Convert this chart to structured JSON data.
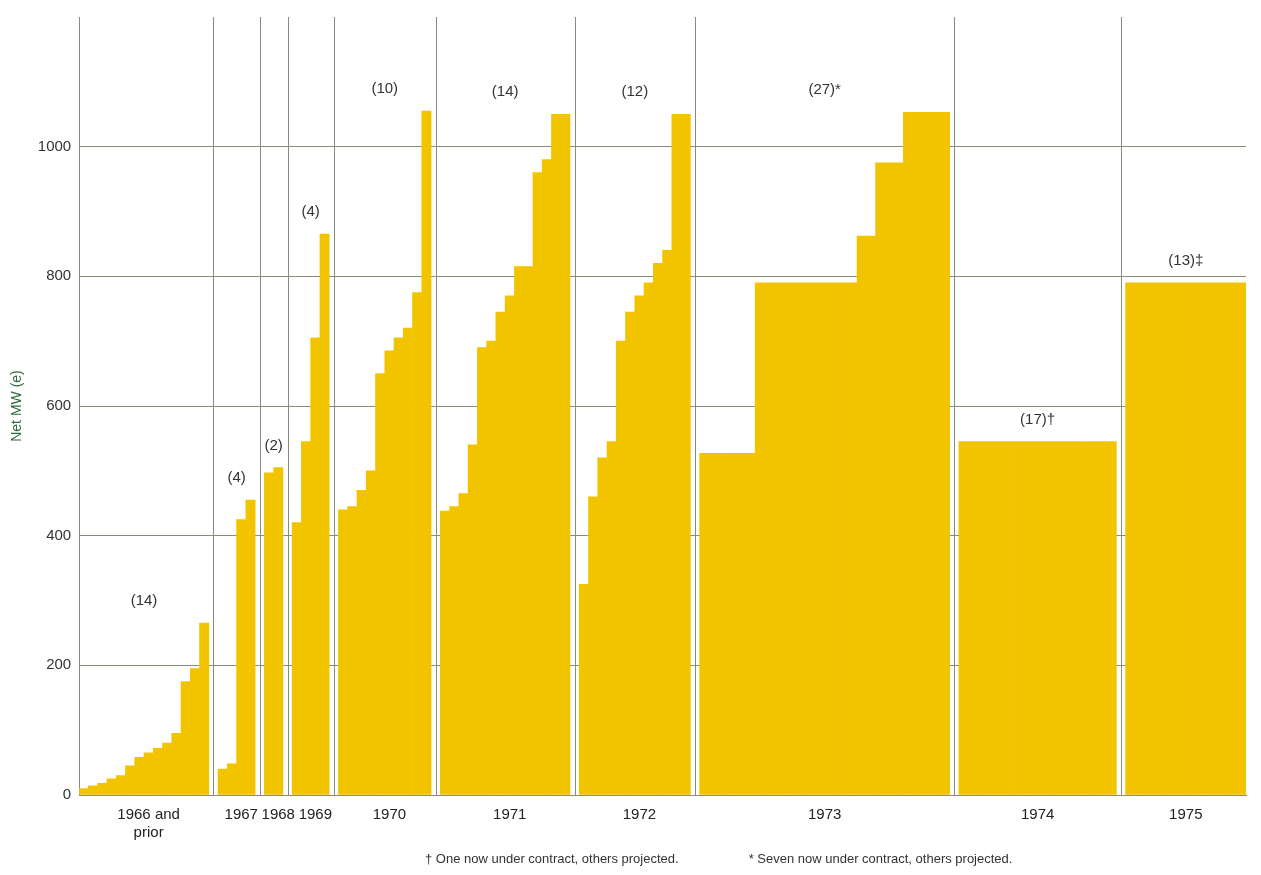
{
  "chart_data": {
    "type": "bar",
    "ylabel": "Net MW (e)",
    "categories": [
      null,
      null,
      null,
      null,
      null,
      null,
      null,
      "1966 and prior",
      null,
      null,
      null,
      null,
      null,
      null,
      null,
      null,
      null,
      "1967",
      null,
      null,
      null,
      "1968",
      null,
      null,
      null,
      "1969",
      null,
      null,
      null,
      null,
      null,
      null,
      null,
      "1970",
      null,
      null,
      null,
      null,
      null,
      null,
      null,
      null,
      null,
      null,
      null,
      null,
      "1971",
      null,
      null,
      null,
      null,
      null,
      null,
      null,
      null,
      null,
      null,
      null,
      null,
      null,
      "1972",
      null,
      null,
      null,
      null,
      null,
      null,
      null,
      null,
      null,
      null,
      null,
      null,
      null,
      null,
      null,
      null,
      null,
      null,
      null,
      "1973",
      null,
      null,
      null,
      null,
      null,
      null,
      null,
      null,
      null,
      null,
      null,
      null,
      null,
      null,
      null,
      null,
      null,
      null,
      null,
      null,
      null,
      null,
      "1974",
      null,
      null,
      null,
      null,
      null,
      null,
      null,
      null,
      null,
      null,
      null,
      null,
      null,
      null,
      null,
      "1975",
      null,
      null,
      null,
      null,
      null,
      null
    ],
    "values": [
      10,
      14,
      18,
      25,
      30,
      45,
      58,
      65,
      72,
      80,
      95,
      175,
      195,
      265,
      null,
      40,
      48,
      425,
      455,
      null,
      497,
      505,
      null,
      420,
      545,
      705,
      865,
      null,
      440,
      445,
      470,
      500,
      650,
      685,
      705,
      720,
      775,
      1055,
      null,
      438,
      445,
      465,
      540,
      690,
      700,
      745,
      770,
      815,
      815,
      960,
      980,
      1050,
      1050,
      null,
      325,
      460,
      520,
      545,
      700,
      745,
      770,
      790,
      820,
      840,
      1050,
      1050,
      null,
      527,
      527,
      527,
      527,
      527,
      527,
      790,
      790,
      790,
      790,
      790,
      790,
      790,
      790,
      790,
      790,
      790,
      862,
      862,
      975,
      975,
      975,
      1053,
      1053,
      1053,
      1053,
      1053,
      null,
      545,
      545,
      545,
      545,
      545,
      545,
      545,
      545,
      545,
      545,
      545,
      545,
      545,
      545,
      545,
      545,
      545,
      null,
      790,
      790,
      790,
      790,
      790,
      790,
      790,
      790,
      790,
      790,
      790,
      790,
      790
    ],
    "color": "#f2c400",
    "ylim": [
      0,
      1200
    ],
    "yticks": [
      0,
      200,
      400,
      600,
      800,
      1000
    ],
    "grid": true,
    "legend": false,
    "annotations": [
      "(14)",
      "(4)",
      "(2)",
      "(4)",
      "(10)",
      "(14)",
      "(12)",
      "(27)*",
      "(17)†",
      "(13)‡",
      "† One now under contract, others projected.",
      "* Seven now under contract, others projected."
    ]
  }
}
